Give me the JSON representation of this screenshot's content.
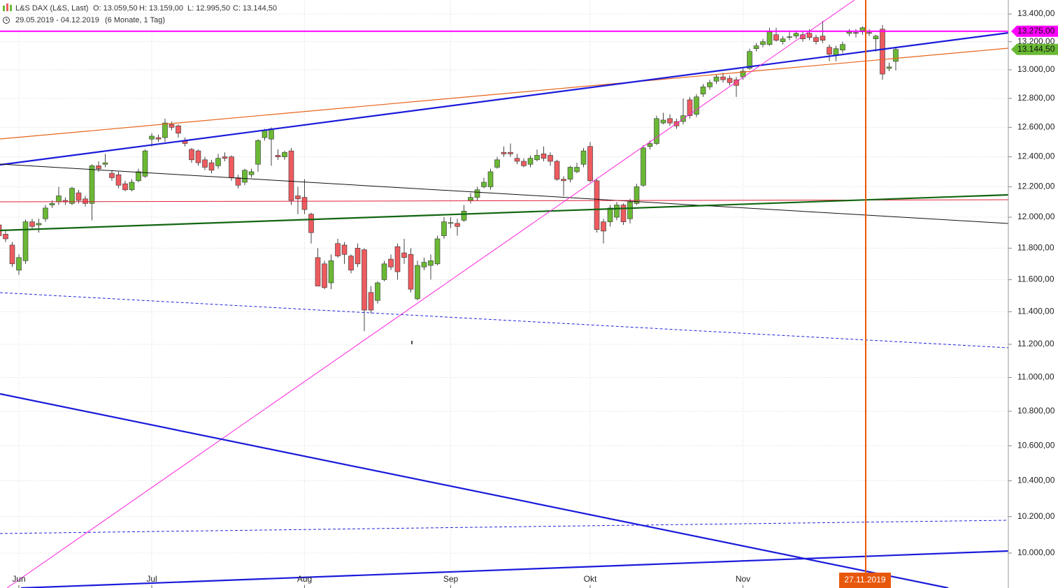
{
  "chart_data": {
    "type": "candlestick",
    "title": "L&S DAX (L&S, Last)",
    "header_values": [
      "O: 13.059,50",
      "H: 13.159,00",
      "L: 12.995,50",
      "C: 13.144,50"
    ],
    "date_range": "29.05.2019 - 04.12.2019",
    "period": "(6 Monate, 1 Tag)",
    "categories": [
      null,
      null,
      null,
      "Jun",
      null,
      null,
      null,
      null,
      null,
      null,
      null,
      null,
      null,
      null,
      null,
      null,
      null,
      null,
      null,
      null,
      null,
      null,
      null,
      "Jul",
      null,
      null,
      null,
      null,
      null,
      null,
      null,
      null,
      null,
      null,
      null,
      null,
      null,
      null,
      null,
      null,
      null,
      null,
      null,
      null,
      null,
      null,
      "Aug",
      null,
      null,
      null,
      null,
      null,
      null,
      null,
      null,
      null,
      null,
      null,
      null,
      null,
      null,
      null,
      null,
      null,
      null,
      null,
      null,
      null,
      "Sep",
      null,
      null,
      null,
      null,
      null,
      null,
      null,
      null,
      null,
      null,
      null,
      null,
      null,
      null,
      null,
      null,
      null,
      null,
      null,
      null,
      "Okt",
      null,
      null,
      null,
      null,
      null,
      null,
      null,
      null,
      null,
      null,
      null,
      null,
      null,
      null,
      null,
      null,
      null,
      null,
      null,
      null,
      null,
      null,
      "Nov",
      null,
      null,
      null,
      null,
      null,
      null,
      null,
      null,
      null,
      null,
      null,
      null,
      null,
      null,
      null,
      null,
      null,
      null,
      null,
      null,
      null,
      null,
      null
    ],
    "open": [
      11950,
      11890,
      11820,
      11660,
      11720,
      11970,
      11950,
      11990,
      12080,
      12100,
      12110,
      12090,
      12160,
      12120,
      12090,
      12340,
      12350,
      12290,
      12280,
      12220,
      12180,
      12240,
      12270,
      12520,
      12530,
      12530,
      12620,
      12610,
      12510,
      12450,
      12440,
      12380,
      12360,
      12340,
      12400,
      12400,
      12260,
      12230,
      12280,
      12350,
      12530,
      12520,
      12410,
      12400,
      12440,
      12140,
      12130,
      12020,
      11740,
      11700,
      11580,
      11830,
      11820,
      11750,
      11800,
      11790,
      11520,
      11470,
      11600,
      11730,
      11810,
      11770,
      11760,
      11480,
      11680,
      11690,
      11700,
      11880,
      11960,
      11960,
      11980,
      12110,
      12130,
      12200,
      12200,
      12330,
      12430,
      12430,
      12390,
      12370,
      12350,
      12380,
      12420,
      12410,
      12370,
      12250,
      12250,
      12300,
      12350,
      12470,
      12240,
      11970,
      11970,
      12000,
      12080,
      11990,
      12090,
      12210,
      12470,
      12490,
      12630,
      12660,
      12640,
      12640,
      12790,
      12690,
      12830,
      12880,
      12920,
      12950,
      12940,
      12930,
      12950,
      13010,
      13150,
      13180,
      13180,
      13250,
      13200,
      13230,
      13240,
      13250,
      13260,
      13230,
      13240,
      13160,
      13100,
      13140,
      13260,
      13265,
      13270,
      13265,
      13220,
      13290,
      13010,
      13059.5
    ],
    "high": [
      11975,
      11910,
      11840,
      11760,
      11985,
      11990,
      11990,
      12080,
      12110,
      12200,
      12130,
      12200,
      12180,
      12140,
      12350,
      12370,
      12420,
      12310,
      12300,
      12240,
      12250,
      12320,
      12450,
      12560,
      12550,
      12660,
      12640,
      12620,
      12530,
      12460,
      12450,
      12400,
      12380,
      12420,
      12430,
      12410,
      12280,
      12320,
      12320,
      12520,
      12590,
      12600,
      12450,
      12440,
      12460,
      12200,
      12250,
      12030,
      11800,
      11720,
      11760,
      11860,
      11840,
      11760,
      11830,
      11800,
      11560,
      11590,
      11720,
      11760,
      11830,
      11860,
      11800,
      11720,
      11740,
      11760,
      11880,
      12000,
      12000,
      11990,
      12080,
      12160,
      12200,
      12260,
      12320,
      12400,
      12470,
      12490,
      12420,
      12390,
      12410,
      12450,
      12470,
      12430,
      12380,
      12270,
      12340,
      12360,
      12460,
      12500,
      12250,
      11990,
      12080,
      12100,
      12090,
      12120,
      12220,
      12480,
      12510,
      12680,
      12700,
      12690,
      12660,
      12800,
      12810,
      12830,
      12900,
      12930,
      12970,
      12980,
      12960,
      12950,
      13010,
      13150,
      13190,
      13220,
      13300,
      13300,
      13240,
      13280,
      13280,
      13270,
      13290,
      13250,
      13350,
      13180,
      13170,
      13200,
      13290,
      13290,
      13310,
      13290,
      13250,
      13320,
      13050,
      13159
    ],
    "low": [
      11860,
      11840,
      11680,
      11630,
      11700,
      11920,
      11900,
      11970,
      12060,
      12080,
      12080,
      12080,
      12090,
      12070,
      11980,
      12300,
      12330,
      12240,
      12190,
      12170,
      12170,
      12230,
      12260,
      12470,
      12500,
      12500,
      12580,
      12530,
      12470,
      12360,
      12340,
      12310,
      12290,
      12320,
      12370,
      12240,
      12190,
      12210,
      12260,
      12300,
      12510,
      12340,
      12380,
      12380,
      12080,
      12020,
      12020,
      11830,
      11560,
      11540,
      11540,
      11740,
      11700,
      11640,
      11680,
      11280,
      11390,
      11450,
      11590,
      11660,
      11600,
      11700,
      11520,
      11470,
      11660,
      11600,
      11690,
      11860,
      11930,
      11880,
      11970,
      12090,
      12110,
      12190,
      12180,
      12320,
      12400,
      12400,
      12350,
      12330,
      12330,
      12370,
      12370,
      12340,
      12240,
      12140,
      12230,
      12290,
      12330,
      12230,
      11900,
      11830,
      11940,
      11980,
      11950,
      11960,
      12080,
      12200,
      12450,
      12480,
      12620,
      12610,
      12590,
      12620,
      12660,
      12670,
      12810,
      12860,
      12900,
      12910,
      12890,
      12810,
      12930,
      13000,
      13130,
      13160,
      13170,
      13200,
      13180,
      13210,
      13220,
      13200,
      13210,
      13180,
      13190,
      13060,
      13060,
      13120,
      13240,
      13230,
      13250,
      13240,
      13130,
      12930,
      12990,
      12995.5
    ],
    "close": [
      11880,
      11860,
      11700,
      11740,
      11970,
      11940,
      11960,
      12060,
      12090,
      12140,
      12100,
      12190,
      12110,
      12090,
      12340,
      12320,
      12360,
      12260,
      12210,
      12180,
      12230,
      12300,
      12440,
      12540,
      12520,
      12630,
      12600,
      12560,
      12490,
      12380,
      12360,
      12330,
      12310,
      12390,
      12390,
      12260,
      12210,
      12310,
      12300,
      12510,
      12580,
      12590,
      12400,
      12430,
      12110,
      12120,
      12050,
      11900,
      11560,
      11550,
      11720,
      11750,
      11760,
      11660,
      11700,
      11410,
      11410,
      11580,
      11700,
      11680,
      11650,
      11740,
      11540,
      11690,
      11710,
      11720,
      11860,
      11970,
      11965,
      11940,
      12040,
      12130,
      12180,
      12230,
      12300,
      12380,
      12420,
      12420,
      12370,
      12340,
      12390,
      12410,
      12390,
      12370,
      12250,
      12240,
      12330,
      12330,
      12440,
      12240,
      11920,
      11910,
      12060,
      12080,
      11970,
      12100,
      12200,
      12460,
      12490,
      12660,
      12650,
      12630,
      12610,
      12680,
      12680,
      12810,
      12880,
      12910,
      12950,
      12930,
      12910,
      12890,
      12990,
      13130,
      13170,
      13200,
      13270,
      13210,
      13220,
      13235,
      13260,
      13220,
      13230,
      13200,
      13210,
      13110,
      13150,
      13180,
      13270,
      13260,
      13300,
      13260,
      13240,
      12970,
      13020,
      13144.5
    ],
    "up_color": "#6ab934",
    "down_color": "#ee5b5f",
    "log_scale": true,
    "ylim": [
      9812,
      13502
    ],
    "yticks": [
      {
        "value": 10000,
        "label": "10.000,00"
      },
      {
        "value": 10200,
        "label": "10.200,00"
      },
      {
        "value": 10400,
        "label": "10.400,00"
      },
      {
        "value": 10600,
        "label": "10.600,00"
      },
      {
        "value": 10800,
        "label": "10.800,00"
      },
      {
        "value": 11000,
        "label": "11.000,00"
      },
      {
        "value": 11200,
        "label": "11.200,00"
      },
      {
        "value": 11400,
        "label": "11.400,00"
      },
      {
        "value": 11600,
        "label": "11.600,00"
      },
      {
        "value": 11800,
        "label": "11.800,00"
      },
      {
        "value": 12000,
        "label": "12.000,00"
      },
      {
        "value": 12200,
        "label": "12.200,00"
      },
      {
        "value": 12400,
        "label": "12.400,00"
      },
      {
        "value": 12600,
        "label": "12.600,00"
      },
      {
        "value": 12800,
        "label": "12.800,00"
      },
      {
        "value": 13000,
        "label": "13.000,00"
      },
      {
        "value": 13200,
        "label": "13.200,00"
      },
      {
        "value": 13400,
        "label": "13.400,00"
      }
    ],
    "grid": true,
    "hline": {
      "value": 13275,
      "label": "13.275,00",
      "color": "#ff00ff"
    },
    "last_price": {
      "value": 13144.5,
      "label": "13.144,50",
      "color": "#6ab934"
    },
    "marker": {
      "label": "27.11.2019",
      "color": "#e8580c"
    }
  }
}
